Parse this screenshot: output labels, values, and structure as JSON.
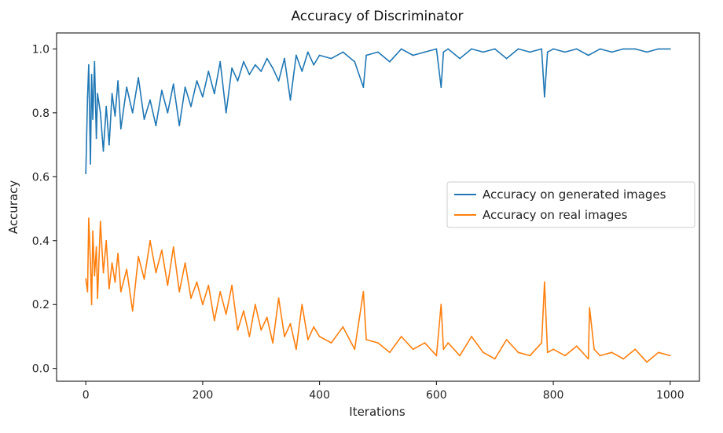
{
  "chart_data": {
    "type": "line",
    "title": "Accuracy of Discriminator",
    "xlabel": "Iterations",
    "ylabel": "Accuracy",
    "xlim": [
      -50,
      1050
    ],
    "ylim": [
      -0.04,
      1.05
    ],
    "xticks": [
      0,
      200,
      400,
      600,
      800,
      1000
    ],
    "yticks": [
      0.0,
      0.2,
      0.4,
      0.6,
      0.8,
      1.0
    ],
    "ytick_labels": [
      "0.0",
      "0.2",
      "0.4",
      "0.6",
      "0.8",
      "1.0"
    ],
    "grid": false,
    "legend_position": "center-right",
    "series": [
      {
        "name": "Accuracy on generated images",
        "color": "#1f77b4",
        "x": [
          0,
          3,
          5,
          8,
          10,
          12,
          15,
          18,
          20,
          25,
          30,
          35,
          40,
          45,
          50,
          55,
          60,
          70,
          80,
          90,
          100,
          110,
          120,
          130,
          140,
          150,
          160,
          170,
          180,
          190,
          200,
          210,
          220,
          230,
          240,
          250,
          260,
          270,
          280,
          290,
          300,
          310,
          320,
          330,
          340,
          350,
          360,
          370,
          380,
          390,
          400,
          420,
          440,
          460,
          475,
          480,
          500,
          520,
          540,
          560,
          580,
          600,
          608,
          612,
          620,
          640,
          660,
          680,
          700,
          720,
          740,
          760,
          780,
          785,
          790,
          800,
          820,
          840,
          860,
          880,
          900,
          920,
          940,
          960,
          980,
          1000
        ],
        "values": [
          0.61,
          0.85,
          0.95,
          0.64,
          0.92,
          0.78,
          0.96,
          0.72,
          0.86,
          0.8,
          0.68,
          0.82,
          0.7,
          0.86,
          0.79,
          0.9,
          0.75,
          0.88,
          0.8,
          0.91,
          0.78,
          0.84,
          0.76,
          0.87,
          0.8,
          0.89,
          0.76,
          0.88,
          0.82,
          0.9,
          0.85,
          0.93,
          0.86,
          0.96,
          0.8,
          0.94,
          0.9,
          0.96,
          0.92,
          0.95,
          0.93,
          0.97,
          0.94,
          0.9,
          0.97,
          0.84,
          0.98,
          0.93,
          0.99,
          0.95,
          0.98,
          0.97,
          0.99,
          0.96,
          0.88,
          0.98,
          0.99,
          0.96,
          1.0,
          0.98,
          0.99,
          1.0,
          0.88,
          0.99,
          1.0,
          0.97,
          1.0,
          0.99,
          1.0,
          0.97,
          1.0,
          0.99,
          1.0,
          0.85,
          0.99,
          1.0,
          0.99,
          1.0,
          0.98,
          1.0,
          0.99,
          1.0,
          1.0,
          0.99,
          1.0,
          1.0
        ]
      },
      {
        "name": "Accuracy on real images",
        "color": "#ff7f0e",
        "x": [
          0,
          3,
          5,
          8,
          10,
          12,
          15,
          18,
          20,
          25,
          30,
          35,
          40,
          45,
          50,
          55,
          60,
          70,
          80,
          90,
          100,
          110,
          120,
          130,
          140,
          150,
          160,
          170,
          180,
          190,
          200,
          210,
          220,
          230,
          240,
          250,
          260,
          270,
          280,
          290,
          300,
          310,
          320,
          330,
          340,
          350,
          360,
          370,
          380,
          390,
          400,
          420,
          440,
          460,
          475,
          480,
          500,
          520,
          540,
          560,
          580,
          600,
          608,
          612,
          620,
          640,
          660,
          680,
          700,
          720,
          740,
          760,
          780,
          785,
          790,
          800,
          820,
          840,
          860,
          862,
          870,
          880,
          900,
          920,
          940,
          960,
          980,
          1000
        ],
        "values": [
          0.28,
          0.24,
          0.47,
          0.33,
          0.2,
          0.43,
          0.29,
          0.38,
          0.22,
          0.46,
          0.3,
          0.4,
          0.25,
          0.33,
          0.27,
          0.36,
          0.24,
          0.31,
          0.18,
          0.35,
          0.28,
          0.4,
          0.3,
          0.37,
          0.26,
          0.38,
          0.24,
          0.33,
          0.22,
          0.27,
          0.2,
          0.26,
          0.15,
          0.24,
          0.17,
          0.26,
          0.12,
          0.18,
          0.1,
          0.2,
          0.12,
          0.16,
          0.08,
          0.22,
          0.1,
          0.14,
          0.06,
          0.2,
          0.09,
          0.13,
          0.1,
          0.08,
          0.13,
          0.06,
          0.24,
          0.09,
          0.08,
          0.05,
          0.1,
          0.06,
          0.08,
          0.04,
          0.2,
          0.06,
          0.08,
          0.04,
          0.1,
          0.05,
          0.03,
          0.09,
          0.05,
          0.04,
          0.08,
          0.27,
          0.05,
          0.06,
          0.04,
          0.07,
          0.03,
          0.19,
          0.06,
          0.04,
          0.05,
          0.03,
          0.06,
          0.02,
          0.05,
          0.04
        ]
      }
    ]
  }
}
